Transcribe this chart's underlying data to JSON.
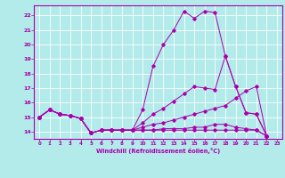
{
  "xlabel": "Windchill (Refroidissement éolien,°C)",
  "xlim": [
    -0.5,
    23.5
  ],
  "ylim": [
    13.5,
    22.7
  ],
  "xticks": [
    0,
    1,
    2,
    3,
    4,
    5,
    6,
    7,
    8,
    9,
    10,
    11,
    12,
    13,
    14,
    15,
    16,
    17,
    18,
    19,
    20,
    21,
    22,
    23
  ],
  "yticks": [
    14,
    15,
    16,
    17,
    18,
    19,
    20,
    21,
    22
  ],
  "background_color": "#b3eaea",
  "grid_color": "#ffffff",
  "line_color": "#aa00aa",
  "lines": [
    {
      "x": [
        0,
        1,
        2,
        3,
        4,
        5,
        6,
        7,
        8,
        9,
        10,
        11,
        12,
        13,
        14,
        15,
        16,
        17,
        18,
        19,
        20,
        21,
        22
      ],
      "y": [
        15.0,
        15.5,
        15.2,
        15.1,
        14.9,
        13.9,
        14.1,
        14.1,
        14.1,
        14.1,
        15.5,
        18.5,
        20.0,
        21.0,
        22.3,
        21.8,
        22.3,
        22.2,
        19.2,
        17.1,
        15.3,
        15.2,
        13.7
      ]
    },
    {
      "x": [
        0,
        1,
        2,
        3,
        4,
        5,
        6,
        7,
        8,
        9,
        10,
        11,
        12,
        13,
        14,
        15,
        16,
        17,
        18,
        19,
        20,
        21,
        22
      ],
      "y": [
        15.0,
        15.5,
        15.2,
        15.1,
        14.9,
        13.9,
        14.1,
        14.1,
        14.1,
        14.1,
        14.6,
        15.2,
        15.6,
        16.1,
        16.6,
        17.1,
        17.0,
        16.9,
        19.2,
        17.1,
        15.3,
        15.2,
        13.7
      ]
    },
    {
      "x": [
        0,
        1,
        2,
        3,
        4,
        5,
        6,
        7,
        8,
        9,
        10,
        11,
        12,
        13,
        14,
        15,
        16,
        17,
        18,
        19,
        20,
        21,
        22
      ],
      "y": [
        15.0,
        15.5,
        15.2,
        15.1,
        14.9,
        13.9,
        14.1,
        14.1,
        14.1,
        14.1,
        14.3,
        14.5,
        14.6,
        14.8,
        15.0,
        15.2,
        15.4,
        15.6,
        15.8,
        16.3,
        16.8,
        17.1,
        13.7
      ]
    },
    {
      "x": [
        0,
        1,
        2,
        3,
        4,
        5,
        6,
        7,
        8,
        9,
        10,
        11,
        12,
        13,
        14,
        15,
        16,
        17,
        18,
        19,
        20,
        21,
        22
      ],
      "y": [
        15.0,
        15.5,
        15.2,
        15.1,
        14.9,
        13.9,
        14.1,
        14.1,
        14.1,
        14.1,
        14.1,
        14.1,
        14.2,
        14.2,
        14.2,
        14.3,
        14.3,
        14.5,
        14.5,
        14.3,
        14.2,
        14.1,
        13.7
      ]
    },
    {
      "x": [
        0,
        1,
        2,
        3,
        4,
        5,
        6,
        7,
        8,
        9,
        10,
        11,
        12,
        13,
        14,
        15,
        16,
        17,
        18,
        19,
        20,
        21,
        22
      ],
      "y": [
        15.0,
        15.5,
        15.2,
        15.1,
        14.9,
        13.9,
        14.1,
        14.1,
        14.1,
        14.1,
        14.1,
        14.1,
        14.1,
        14.1,
        14.1,
        14.1,
        14.1,
        14.1,
        14.1,
        14.1,
        14.1,
        14.1,
        13.7
      ]
    }
  ]
}
